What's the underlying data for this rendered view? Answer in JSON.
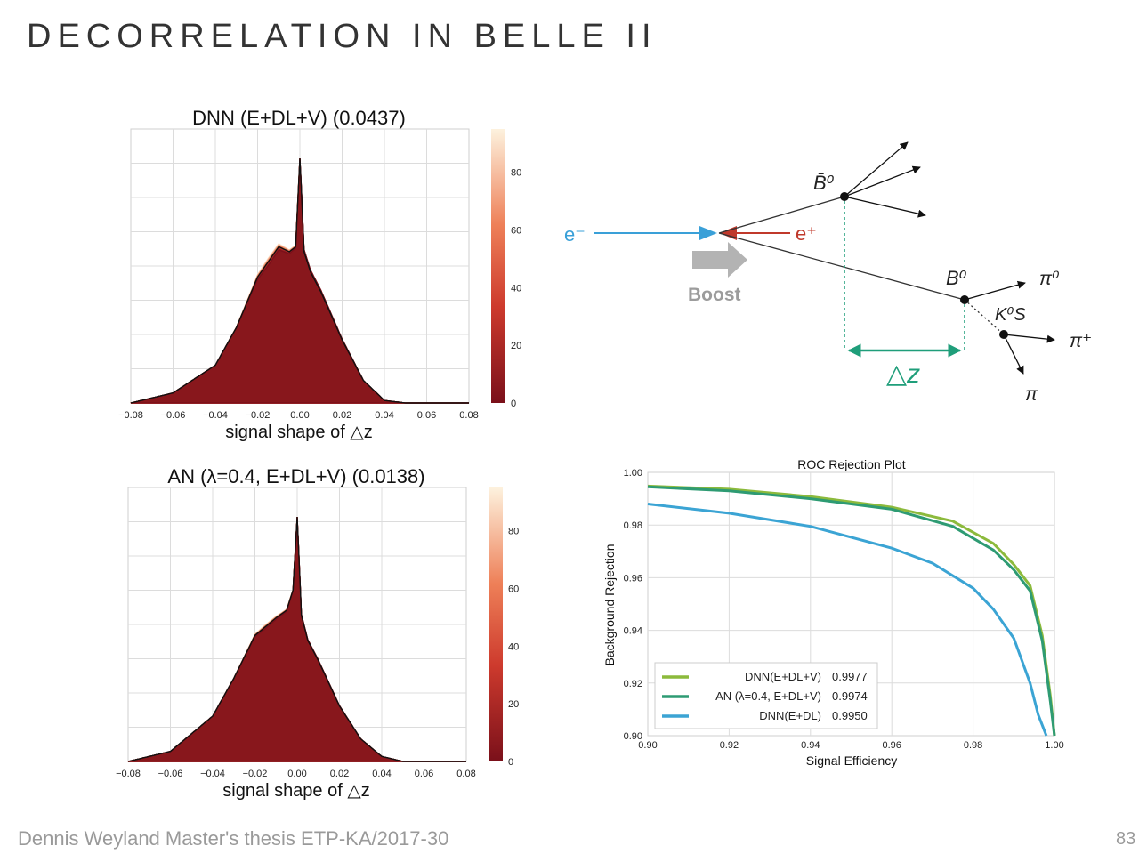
{
  "slide": {
    "title": "DECORRELATION IN BELLE II",
    "footer": "Dennis Weyland Master's thesis ETP-KA/2017-30",
    "page_number": "83"
  },
  "diagram": {
    "electron_label": "e⁻",
    "positron_label": "e⁺",
    "boost_label": "Boost",
    "bbar_label": "B̄⁰",
    "b0_label": "B⁰",
    "pi0_label": "π⁰",
    "ks_label": "K⁰S",
    "piplus_label": "π⁺",
    "piminus_label": "π⁻",
    "dz_label": "△z",
    "colors": {
      "beam": "#3aa0d8",
      "positron": "#c0392b",
      "boost": "#b3b3b3",
      "dz": "#1f9e7a"
    }
  },
  "chart_data": [
    {
      "type": "histogram-overlay",
      "title": "DNN (E+DL+V) (0.0437)",
      "xlabel": "signal shape of △z",
      "xlim": [
        -0.08,
        0.08
      ],
      "xticks": [
        "−0.08",
        "−0.06",
        "−0.04",
        "−0.02",
        "0.00",
        "0.02",
        "0.04",
        "0.06",
        "0.08"
      ],
      "colorbar": {
        "ticks": [
          "0",
          "20",
          "40",
          "60",
          "80"
        ],
        "range": [
          0,
          95
        ]
      },
      "shape": {
        "x": [
          -0.08,
          -0.06,
          -0.04,
          -0.03,
          -0.02,
          -0.01,
          -0.005,
          -0.002,
          0.0,
          0.002,
          0.005,
          0.01,
          0.02,
          0.03,
          0.04,
          0.05,
          0.06,
          0.08
        ],
        "y": [
          0.0,
          0.04,
          0.15,
          0.3,
          0.5,
          0.62,
          0.6,
          0.62,
          0.97,
          0.6,
          0.52,
          0.44,
          0.25,
          0.09,
          0.01,
          0.0,
          0.0,
          0.0
        ]
      },
      "spread": 0.055
    },
    {
      "type": "histogram-overlay",
      "title": "AN (λ=0.4, E+DL+V) (0.0138)",
      "xlabel": "signal shape of △z",
      "xlim": [
        -0.08,
        0.08
      ],
      "xticks": [
        "−0.08",
        "−0.06",
        "−0.04",
        "−0.02",
        "0.00",
        "0.02",
        "0.04",
        "0.06",
        "0.08"
      ],
      "colorbar": {
        "ticks": [
          "0",
          "20",
          "40",
          "60",
          "80"
        ],
        "range": [
          0,
          95
        ]
      },
      "shape": {
        "x": [
          -0.08,
          -0.06,
          -0.04,
          -0.03,
          -0.02,
          -0.01,
          -0.005,
          -0.002,
          0.0,
          0.002,
          0.005,
          0.01,
          0.02,
          0.03,
          0.04,
          0.05,
          0.06,
          0.08
        ],
        "y": [
          0.0,
          0.04,
          0.18,
          0.33,
          0.5,
          0.57,
          0.6,
          0.68,
          0.97,
          0.58,
          0.48,
          0.4,
          0.22,
          0.09,
          0.02,
          0.0,
          0.0,
          0.0
        ]
      },
      "spread": 0.03
    },
    {
      "type": "line",
      "title": "ROC Rejection Plot",
      "xlabel": "Signal Efficiency",
      "ylabel": "Background Rejection",
      "xlim": [
        0.9,
        1.0
      ],
      "ylim": [
        0.9,
        1.0
      ],
      "xticks": [
        "0.90",
        "0.92",
        "0.94",
        "0.96",
        "0.98",
        "1.00"
      ],
      "yticks": [
        "0.90",
        "0.92",
        "0.94",
        "0.96",
        "0.98",
        "1.00"
      ],
      "legend_position": "lower-left",
      "series": [
        {
          "name": "DNN(E+DL+V)",
          "auc": "0.9977",
          "color": "#8cba3c",
          "x": [
            0.9,
            0.92,
            0.94,
            0.96,
            0.975,
            0.985,
            0.99,
            0.994,
            0.997,
            0.999,
            1.0
          ],
          "y": [
            0.9948,
            0.9936,
            0.9908,
            0.9868,
            0.9815,
            0.973,
            0.965,
            0.957,
            0.938,
            0.915,
            0.9
          ]
        },
        {
          "name": "AN (λ=0.4, E+DL+V)",
          "auc": "0.9974",
          "color": "#2e9b73",
          "x": [
            0.9,
            0.92,
            0.94,
            0.96,
            0.975,
            0.985,
            0.99,
            0.994,
            0.997,
            0.999,
            1.0
          ],
          "y": [
            0.9945,
            0.993,
            0.99,
            0.986,
            0.9795,
            0.9705,
            0.963,
            0.955,
            0.936,
            0.913,
            0.9
          ]
        },
        {
          "name": "DNN(E+DL)",
          "auc": "0.9950",
          "color": "#3ba4d4",
          "x": [
            0.9,
            0.92,
            0.94,
            0.96,
            0.97,
            0.98,
            0.985,
            0.99,
            0.994,
            0.996,
            0.998
          ],
          "y": [
            0.988,
            0.9845,
            0.9795,
            0.9712,
            0.9655,
            0.956,
            0.948,
            0.937,
            0.92,
            0.908,
            0.9
          ]
        }
      ]
    }
  ]
}
